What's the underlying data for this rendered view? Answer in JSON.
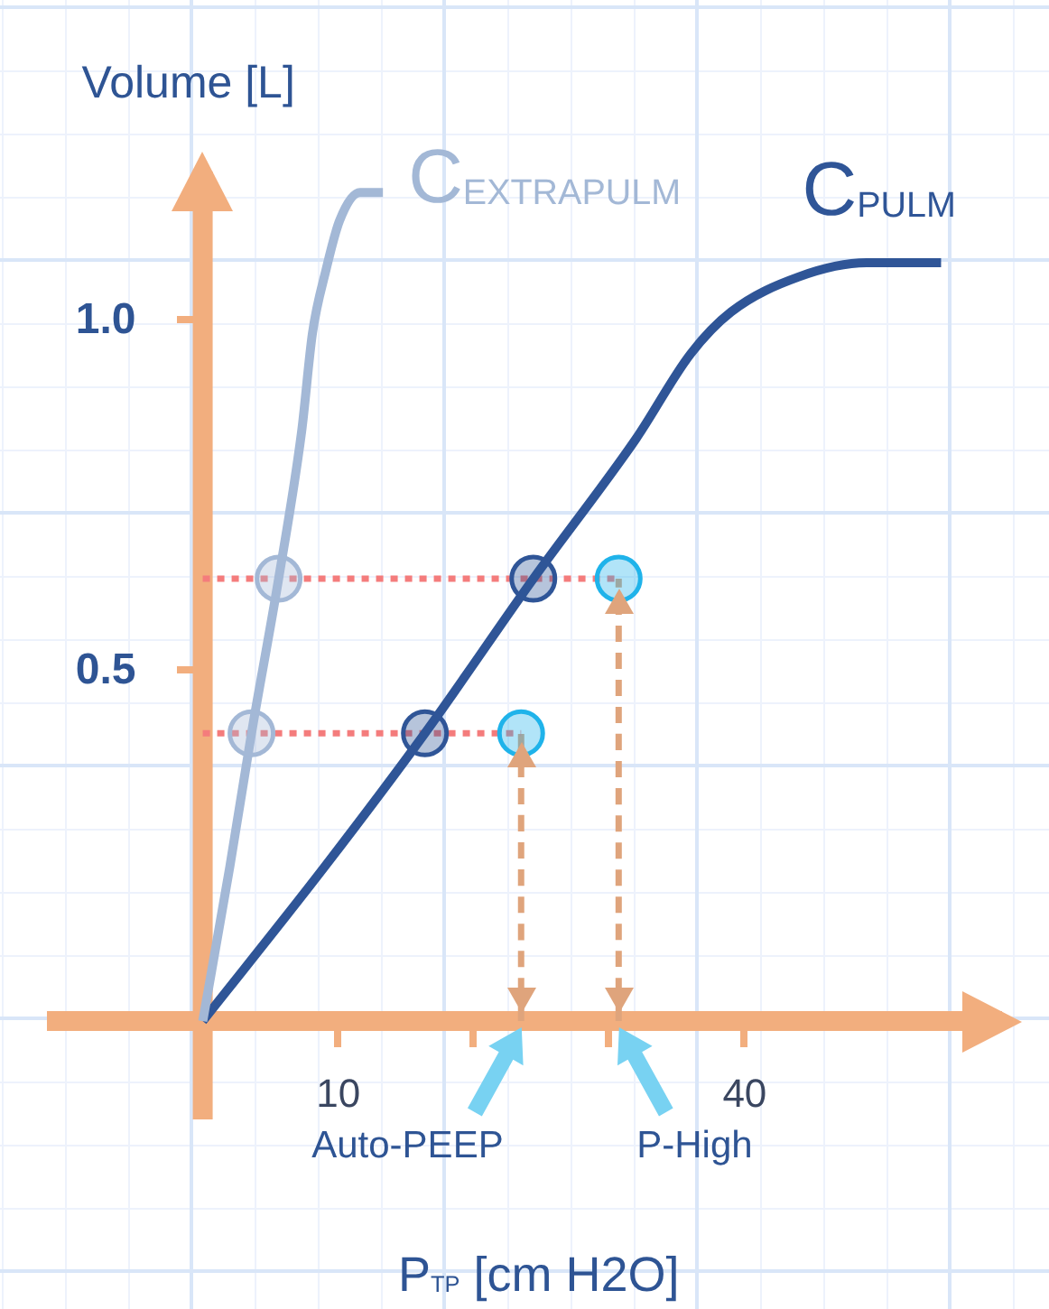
{
  "chart_data": {
    "type": "line",
    "xlabel": "P$_{TP}$ [cm H2O]",
    "ylabel": "Volume [L]",
    "xlim": [
      -11.5,
      59
    ],
    "ylim": [
      -0.14,
      1.21
    ],
    "xticks": [
      10,
      {
        "value": 20,
        "label": null
      },
      {
        "value": 30,
        "label": null
      },
      40
    ],
    "yticks": [
      0.5,
      {
        "value": 1,
        "label": "1.0"
      }
    ],
    "marker": "none",
    "series": [
      {
        "name": "C$_{EXTRAPULM}$",
        "color": "#a3b8d6",
        "x": [
          0,
          2,
          3.6,
          5.6,
          7.3,
          8.1,
          9.1,
          10.1,
          11.6,
          13.3
        ],
        "values": [
          0,
          0.22,
          0.41,
          0.63,
          0.84,
          0.98,
          1.07,
          1.14,
          1.18,
          1.18
        ]
      },
      {
        "name": "C$_{PULM}$",
        "color": "#2f5597",
        "x": [
          0,
          9,
          16.4,
          24.4,
          32,
          36,
          39,
          44,
          49,
          54.5
        ],
        "values": [
          0,
          0.22,
          0.41,
          0.63,
          0.83,
          0.95,
          1.01,
          1.06,
          1.08,
          1.08
        ]
      },
      {
        "color": "#f47c7c",
        "line_style": "dotted",
        "x": [
          0,
          23.5
        ],
        "values": [
          0.41,
          0.41
        ]
      },
      {
        "color": "#f47c7c",
        "line_style": "dotted",
        "x": [
          0,
          30.7
        ],
        "values": [
          0.63,
          0.63
        ]
      },
      {
        "color": "#dfa47c",
        "line_style": "dashed",
        "x": [
          23.5,
          23.5
        ],
        "values": [
          0,
          0.41
        ]
      },
      {
        "color": "#dfa47c",
        "line_style": "dashed",
        "x": [
          30.7,
          30.7
        ],
        "values": [
          0,
          0.63
        ]
      },
      {
        "type": "scatter",
        "marker": "circle",
        "color": "#a3b8d6",
        "x": [
          3.6,
          5.6
        ],
        "values": [
          0.41,
          0.63
        ]
      },
      {
        "type": "scatter",
        "marker": "circle",
        "color": "#2f5597",
        "x": [
          16.4,
          24.4
        ],
        "values": [
          0.41,
          0.63
        ]
      },
      {
        "type": "scatter",
        "marker": "circle",
        "color": "#1fb3ea",
        "x": [
          23.5,
          30.7
        ],
        "values": [
          0.41,
          0.63
        ]
      }
    ],
    "annotations": [
      {
        "text": "Auto-PEEP",
        "x": 23.5,
        "y": 0
      },
      {
        "text": "P-High",
        "x": 30.7,
        "y": 0
      }
    ]
  }
}
